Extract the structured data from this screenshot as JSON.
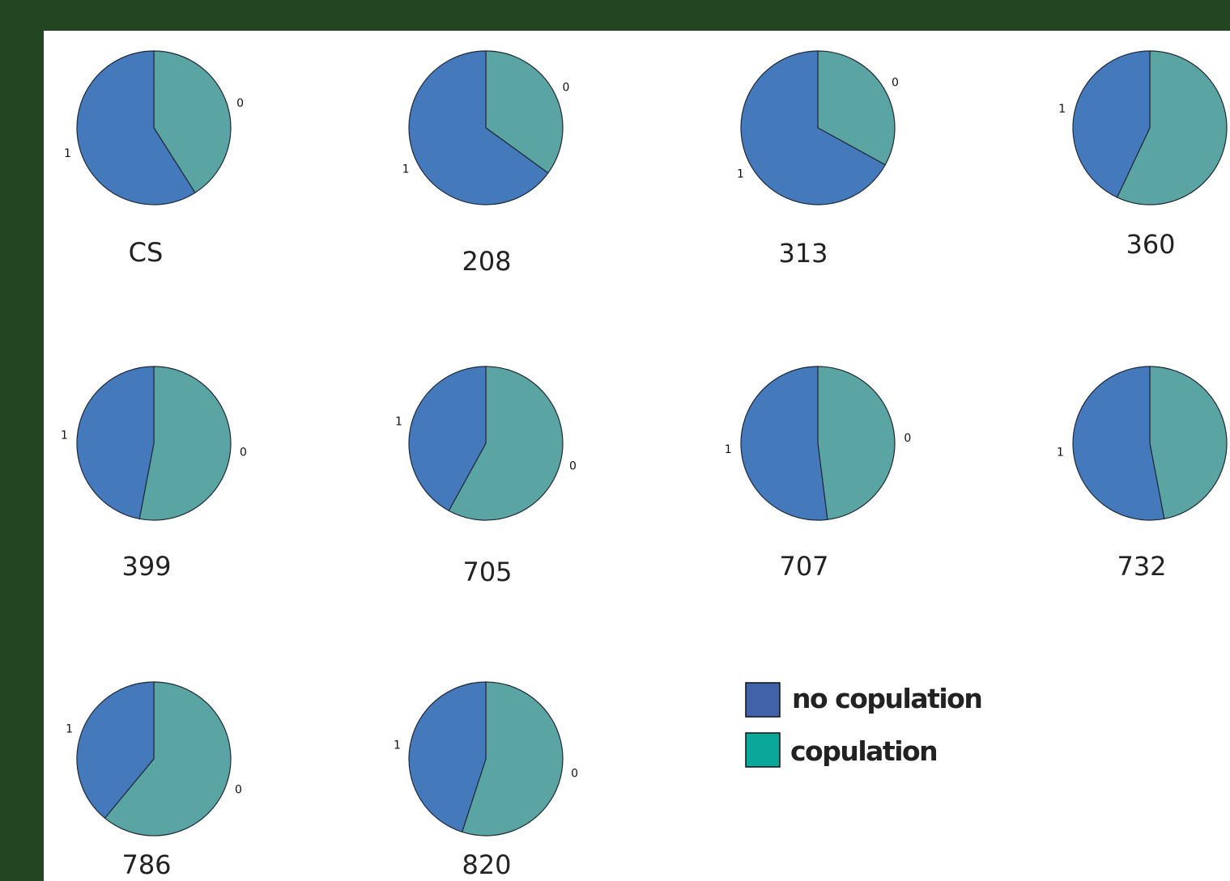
{
  "chart_data": {
    "type": "pie",
    "colors": {
      "1": "#4479bc",
      "0": "#5ba4a4"
    },
    "legend": [
      {
        "label": "no copulation",
        "color": "#3f62a8"
      },
      {
        "label": "copulation",
        "color": "#0aa89a"
      }
    ],
    "charts": [
      {
        "name": "CS",
        "slices": [
          {
            "label": "0",
            "value": 0.41
          },
          {
            "label": "1",
            "value": 0.59
          }
        ]
      },
      {
        "name": "208",
        "slices": [
          {
            "label": "0",
            "value": 0.35
          },
          {
            "label": "1",
            "value": 0.65
          }
        ]
      },
      {
        "name": "313",
        "slices": [
          {
            "label": "0",
            "value": 0.33
          },
          {
            "label": "1",
            "value": 0.67
          }
        ]
      },
      {
        "name": "360",
        "slices": [
          {
            "label": "0",
            "value": 0.57
          },
          {
            "label": "1",
            "value": 0.43
          }
        ]
      },
      {
        "name": "399",
        "slices": [
          {
            "label": "0",
            "value": 0.53
          },
          {
            "label": "1",
            "value": 0.47
          }
        ]
      },
      {
        "name": "705",
        "slices": [
          {
            "label": "0",
            "value": 0.58
          },
          {
            "label": "1",
            "value": 0.42
          }
        ]
      },
      {
        "name": "707",
        "slices": [
          {
            "label": "0",
            "value": 0.48
          },
          {
            "label": "1",
            "value": 0.52
          }
        ]
      },
      {
        "name": "732",
        "slices": [
          {
            "label": "0",
            "value": 0.47
          },
          {
            "label": "1",
            "value": 0.53
          }
        ]
      },
      {
        "name": "786",
        "slices": [
          {
            "label": "0",
            "value": 0.61
          },
          {
            "label": "1",
            "value": 0.39
          }
        ]
      },
      {
        "name": "820",
        "slices": [
          {
            "label": "0",
            "value": 0.55
          },
          {
            "label": "1",
            "value": 0.45
          }
        ]
      }
    ]
  }
}
